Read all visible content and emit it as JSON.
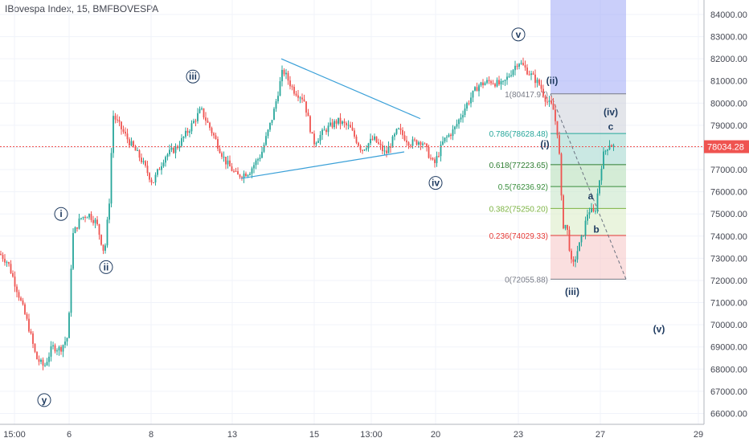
{
  "header": {
    "title": "IBovespa Index, 15, BMFBOVESPA"
  },
  "colors": {
    "up": "#26a69a",
    "down": "#ef5350",
    "price_line": "#ef5350",
    "trendline": "#3aa0d8",
    "wave_label": "#1e3a5f"
  },
  "chart_data": {
    "type": "candlestick",
    "title": "IBovespa Index, 15, BMFBOVESPA",
    "ylim": [
      65500,
      85000
    ],
    "y_ticks": [
      "84000.00",
      "83000.00",
      "82000.00",
      "81000.00",
      "80000.00",
      "79000.00",
      "78000.00",
      "77000.00",
      "76000.00",
      "75000.00",
      "74000.00",
      "73000.00",
      "72000.00",
      "71000.00",
      "70000.00",
      "69000.00",
      "68000.00",
      "67000.00",
      "66000.00"
    ],
    "x_ticks": [
      "15:00",
      "6",
      "8",
      "13",
      "15",
      "13:00",
      "20",
      "23",
      "27",
      "29"
    ],
    "last_price": "78034.28",
    "price_path": [
      [
        0,
        73200
      ],
      [
        10,
        72800
      ],
      [
        22,
        71500
      ],
      [
        35,
        70000
      ],
      [
        45,
        68500
      ],
      [
        55,
        68100
      ],
      [
        65,
        69000
      ],
      [
        75,
        68900
      ],
      [
        85,
        69500
      ],
      [
        90,
        74000
      ],
      [
        100,
        74800
      ],
      [
        110,
        75000
      ],
      [
        120,
        74600
      ],
      [
        130,
        73200
      ],
      [
        137,
        76000
      ],
      [
        140,
        79500
      ],
      [
        160,
        78300
      ],
      [
        175,
        77500
      ],
      [
        190,
        76400
      ],
      [
        205,
        77600
      ],
      [
        220,
        78000
      ],
      [
        235,
        78800
      ],
      [
        250,
        79700
      ],
      [
        265,
        78600
      ],
      [
        280,
        77400
      ],
      [
        295,
        76700
      ],
      [
        310,
        76900
      ],
      [
        325,
        77700
      ],
      [
        340,
        79500
      ],
      [
        352,
        81500
      ],
      [
        365,
        80600
      ],
      [
        378,
        80200
      ],
      [
        390,
        78200
      ],
      [
        405,
        78800
      ],
      [
        420,
        79200
      ],
      [
        435,
        78900
      ],
      [
        450,
        77900
      ],
      [
        465,
        78400
      ],
      [
        480,
        77700
      ],
      [
        495,
        78800
      ],
      [
        510,
        78200
      ],
      [
        525,
        78300
      ],
      [
        540,
        77200
      ],
      [
        552,
        78300
      ],
      [
        565,
        78800
      ],
      [
        580,
        79900
      ],
      [
        595,
        80800
      ],
      [
        610,
        81000
      ],
      [
        625,
        80800
      ],
      [
        645,
        81900
      ],
      [
        660,
        81300
      ],
      [
        672,
        80800
      ],
      [
        680,
        80100
      ],
      [
        688,
        79800
      ],
      [
        695,
        78400
      ],
      [
        700,
        74500
      ],
      [
        705,
        74500
      ],
      [
        712,
        72500
      ],
      [
        718,
        73300
      ],
      [
        725,
        74000
      ],
      [
        732,
        75200
      ],
      [
        740,
        75000
      ],
      [
        750,
        77600
      ],
      [
        758,
        78200
      ],
      [
        765,
        78000
      ]
    ],
    "triangle": [
      {
        "from": [
          350,
          82000
        ],
        "to": [
          523,
          79300
        ]
      },
      {
        "from": [
          300,
          76600
        ],
        "to": [
          503,
          77800
        ]
      }
    ],
    "fib_levels": [
      {
        "ratio": "1",
        "price": 80417.97,
        "label": "1(80417.97)",
        "color": "#787b86"
      },
      {
        "ratio": "0.786",
        "price": 78628.48,
        "label": "0.786(78628.48)",
        "color": "#26a69a"
      },
      {
        "ratio": "0.618",
        "price": 77223.65,
        "label": "0.618(77223.65)",
        "color": "#2e7d32"
      },
      {
        "ratio": "0.5",
        "price": 76236.92,
        "label": "0.5(76236.92)",
        "color": "#388e3c"
      },
      {
        "ratio": "0.382",
        "price": 75250.2,
        "label": "0.382(75250.20)",
        "color": "#7cb342"
      },
      {
        "ratio": "0.236",
        "price": 74029.33,
        "label": "0.236(74029.33)",
        "color": "#e53935"
      },
      {
        "ratio": "0",
        "price": 72055.88,
        "label": "0(72055.88)",
        "color": "#787b86"
      }
    ],
    "wave_labels": [
      {
        "text": "y",
        "x": 55,
        "price": 66600,
        "circled": true
      },
      {
        "text": "i",
        "x": 76,
        "price": 75000,
        "circled": true
      },
      {
        "text": "ii",
        "x": 132,
        "price": 72600,
        "circled": true
      },
      {
        "text": "iii",
        "x": 240,
        "price": 81200,
        "circled": true
      },
      {
        "text": "iv",
        "x": 542,
        "price": 76400,
        "circled": true
      },
      {
        "text": "v",
        "x": 645,
        "price": 83100,
        "circled": true
      },
      {
        "text": "(ii)",
        "x": 687,
        "price": 81000,
        "circled": false
      },
      {
        "text": "(i)",
        "x": 678,
        "price": 78150,
        "circled": false
      },
      {
        "text": "(iii)",
        "x": 712,
        "price": 71500,
        "circled": false
      },
      {
        "text": "(iv)",
        "x": 760,
        "price": 79600,
        "circled": false
      },
      {
        "text": "c",
        "x": 760,
        "price": 78950,
        "circled": false
      },
      {
        "text": "a",
        "x": 735,
        "price": 75800,
        "circled": false
      },
      {
        "text": "b",
        "x": 742,
        "price": 74300,
        "circled": false
      },
      {
        "text": "(v)",
        "x": 820,
        "price": 69800,
        "circled": false
      }
    ]
  }
}
